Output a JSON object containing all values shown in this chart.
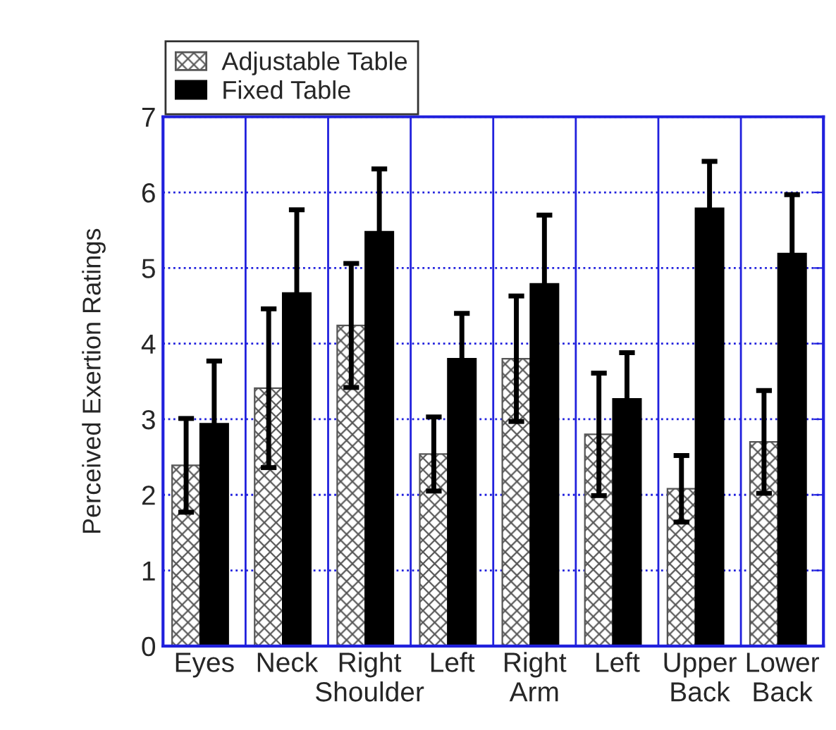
{
  "chart_data": {
    "type": "bar",
    "ylabel": "Perceived Exertion Ratings",
    "categories": [
      "Eyes",
      "Neck",
      "Right\nShoulder",
      "Left",
      "Right\nArm",
      "Left",
      "Upper\nBack",
      "Lower\nBack"
    ],
    "series": [
      {
        "name": "Adjustable Table",
        "color": "#555555",
        "values": [
          2.39,
          3.41,
          4.24,
          2.54,
          3.8,
          2.8,
          2.08,
          2.7
        ],
        "errors": [
          0.62,
          1.05,
          0.82,
          0.49,
          0.83,
          0.81,
          0.44,
          0.68
        ]
      },
      {
        "name": "Fixed Table",
        "color": "#000000",
        "values": [
          2.94,
          4.67,
          5.48,
          3.8,
          4.79,
          3.27,
          5.79,
          5.19
        ],
        "errors": [
          0.83,
          1.1,
          0.83,
          0.6,
          0.91,
          0.61,
          0.62,
          0.78
        ]
      }
    ],
    "ylim": [
      0,
      7
    ],
    "yticks": [
      0,
      1,
      2,
      3,
      4,
      5,
      6,
      7
    ],
    "grid": true,
    "legend": "top left"
  }
}
